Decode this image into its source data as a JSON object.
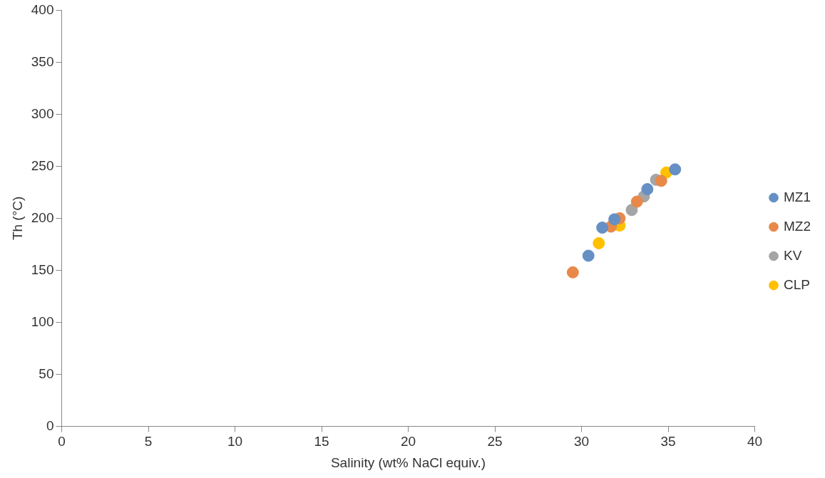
{
  "chart_data": {
    "type": "scatter",
    "xlabel": "Salinity (wt% NaCl equiv.)",
    "ylabel": "Th (°C)",
    "xlim": [
      0,
      40
    ],
    "xticks": [
      0,
      5,
      10,
      15,
      20,
      25,
      30,
      35,
      40
    ],
    "ylim": [
      0,
      400
    ],
    "yticks": [
      0,
      50,
      100,
      150,
      200,
      250,
      300,
      350,
      400
    ],
    "grid": false,
    "legend": "right",
    "marker": "circle",
    "series": [
      {
        "name": "MZ1",
        "color": "#6690c4",
        "x": [
          35.4,
          33.8,
          31.2,
          31.9,
          30.4
        ],
        "values": [
          247,
          228,
          191,
          199,
          164
        ]
      },
      {
        "name": "MZ2",
        "color": "#e8894a",
        "x": [
          29.5,
          31.7,
          32.2,
          33.2,
          34.6
        ],
        "values": [
          148,
          192,
          200,
          216,
          236
        ]
      },
      {
        "name": "KV",
        "color": "#a5a5a5",
        "x": [
          32.9,
          33.6,
          34.3
        ],
        "values": [
          208,
          221,
          237
        ]
      },
      {
        "name": "CLP",
        "color": "#ffc000",
        "x": [
          34.9,
          32.2,
          31.0
        ],
        "values": [
          244,
          193,
          176
        ]
      }
    ]
  }
}
